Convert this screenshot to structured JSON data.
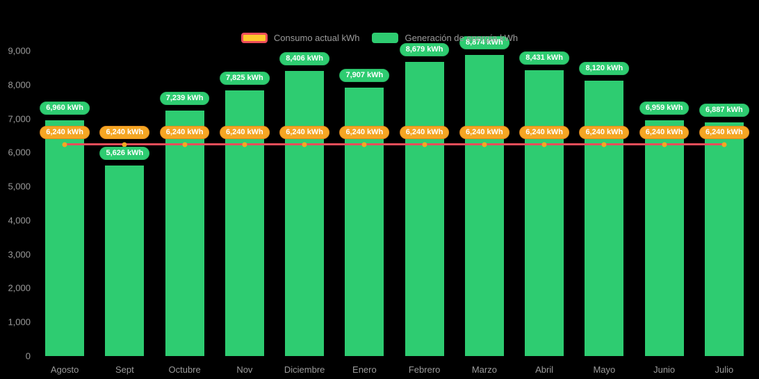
{
  "legend": {
    "consumption_label": "Consumo actual kWh",
    "generation_label": "Generación de energía kWh"
  },
  "colors": {
    "bar": "#2ECC71",
    "line": "#ED4D5A",
    "point": "#F5A623",
    "generation_badge_bg": "#2ECC71",
    "consumption_badge_bg": "#F5A623",
    "axis_text": "#9b9b9b",
    "background": "#000000"
  },
  "chart_data": {
    "type": "bar",
    "categories": [
      "Agosto",
      "Sept",
      "Octubre",
      "Nov",
      "Diciembre",
      "Enero",
      "Febrero",
      "Marzo",
      "Abril",
      "Mayo",
      "Junio",
      "Julio"
    ],
    "series": [
      {
        "name": "Generación de energía kWh",
        "type": "bar",
        "values": [
          6960,
          5626,
          7239,
          7825,
          8406,
          7907,
          8679,
          8874,
          8431,
          8120,
          6959,
          6887
        ]
      },
      {
        "name": "Consumo actual kWh",
        "type": "line",
        "values": [
          6240,
          6240,
          6240,
          6240,
          6240,
          6240,
          6240,
          6240,
          6240,
          6240,
          6240,
          6240
        ]
      }
    ],
    "bar_labels": [
      "6,960 kWh",
      "5,626 kWh",
      "7,239 kWh",
      "7,825 kWh",
      "8,406 kWh",
      "7,907 kWh",
      "8,679 kWh",
      "8,874 kWh",
      "8,431 kWh",
      "8,120 kWh",
      "6,959 kWh",
      "6,887 kWh"
    ],
    "line_labels": [
      "6,240 kWh",
      "6,240 kWh",
      "6,240 kWh",
      "6,240 kWh",
      "6,240 kWh",
      "6,240 kWh",
      "6,240 kWh",
      "6,240 kWh",
      "6,240 kWh",
      "6,240 kWh",
      "6,240 kWh",
      "6,240 kWh"
    ],
    "y_ticks": [
      "9,000",
      "8,000",
      "7,000",
      "6,000",
      "5,000",
      "4,000",
      "3,000",
      "2,000",
      "1,000",
      "0"
    ],
    "ylim": [
      0,
      9000
    ],
    "grid": false,
    "legend_position": "top",
    "title": ""
  }
}
